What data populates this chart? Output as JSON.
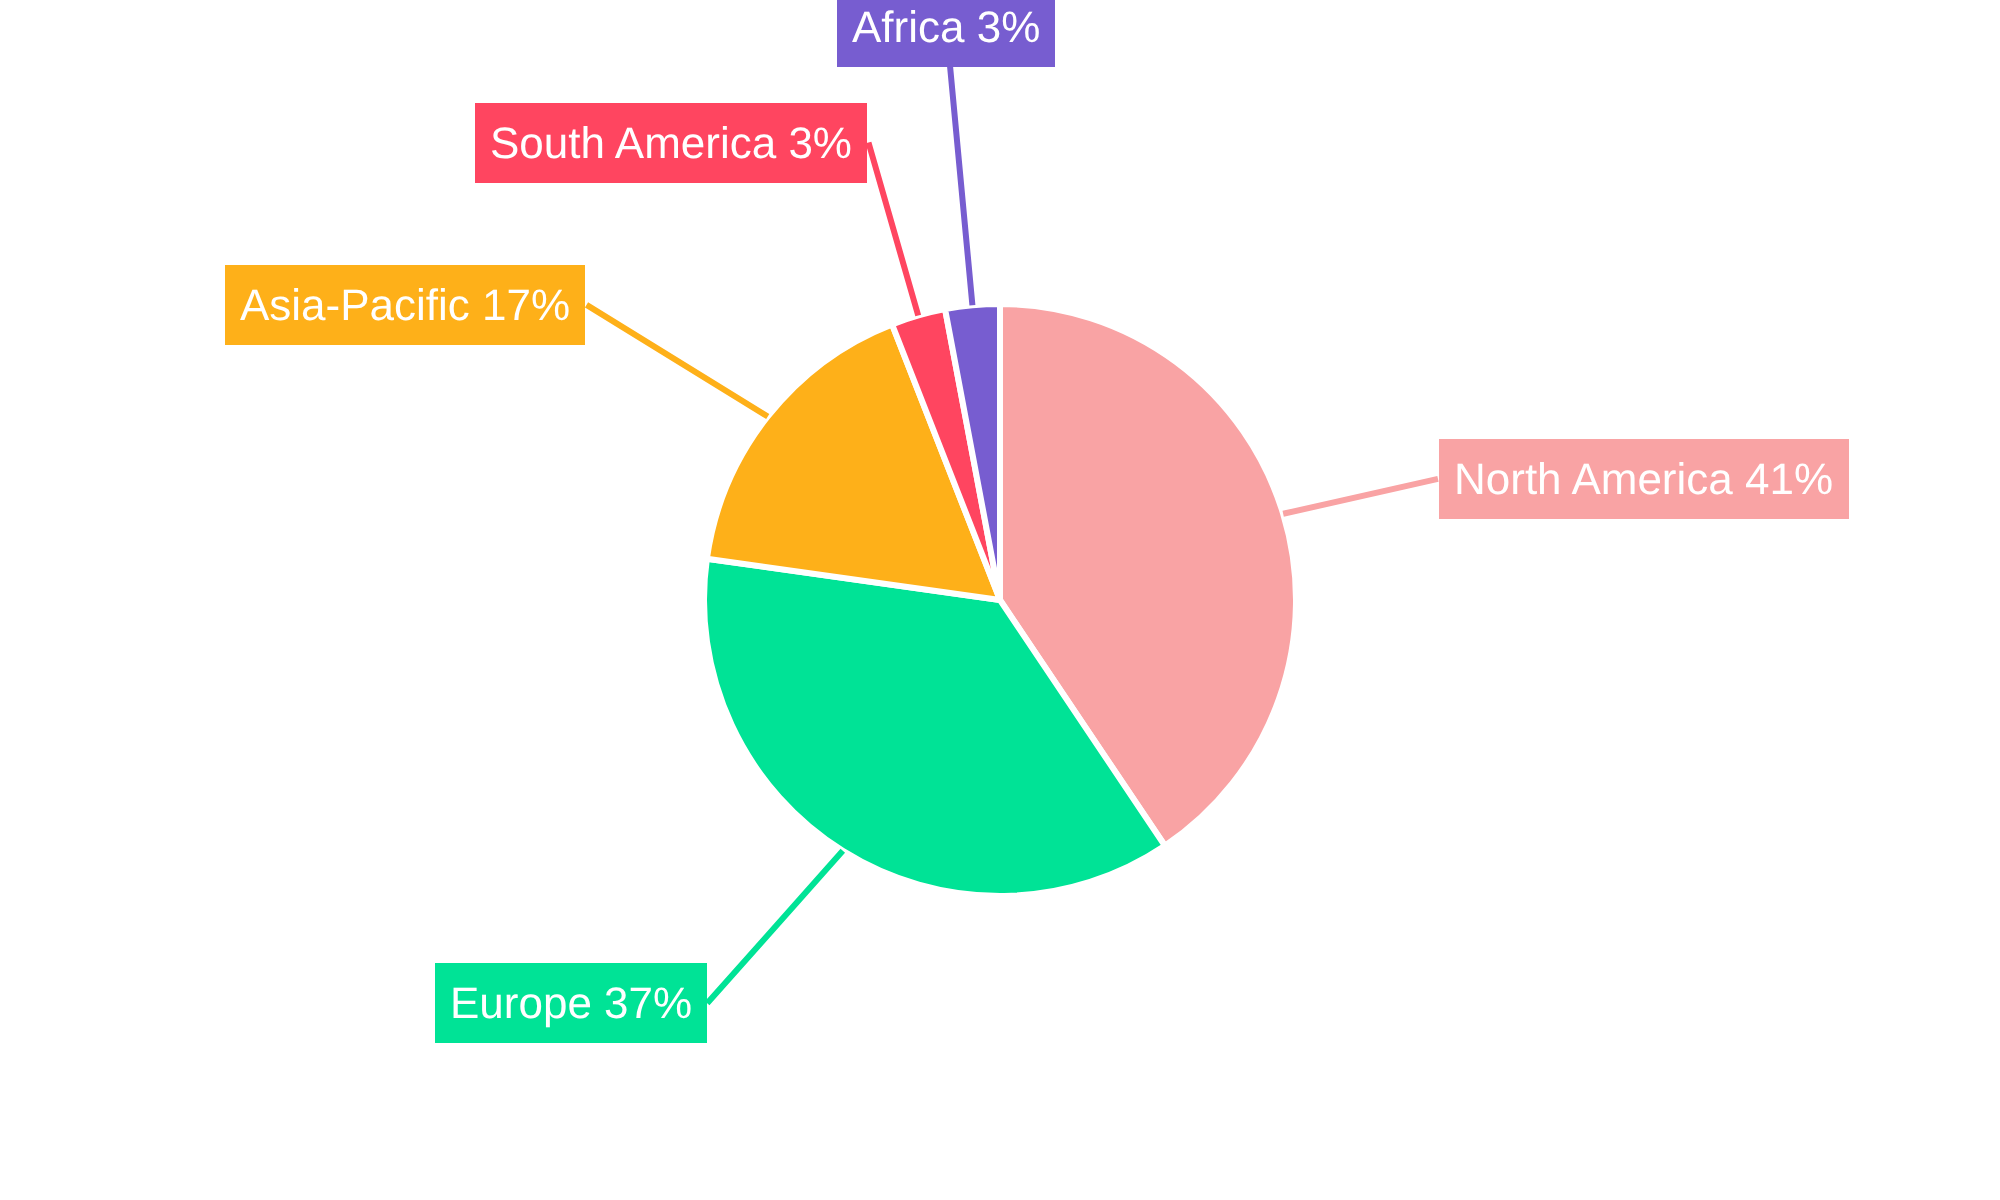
{
  "chart_data": {
    "type": "pie",
    "categories": [
      "North America",
      "Europe",
      "Asia-Pacific",
      "South America",
      "Africa"
    ],
    "values": [
      41,
      37,
      17,
      3,
      3
    ],
    "colors": [
      "#f9a3a4",
      "#00e396",
      "#feb019",
      "#ff4560",
      "#775dd0"
    ],
    "value_labels": [
      "41%",
      "37%",
      "17%",
      "3%",
      "3%"
    ],
    "legend": false
  }
}
